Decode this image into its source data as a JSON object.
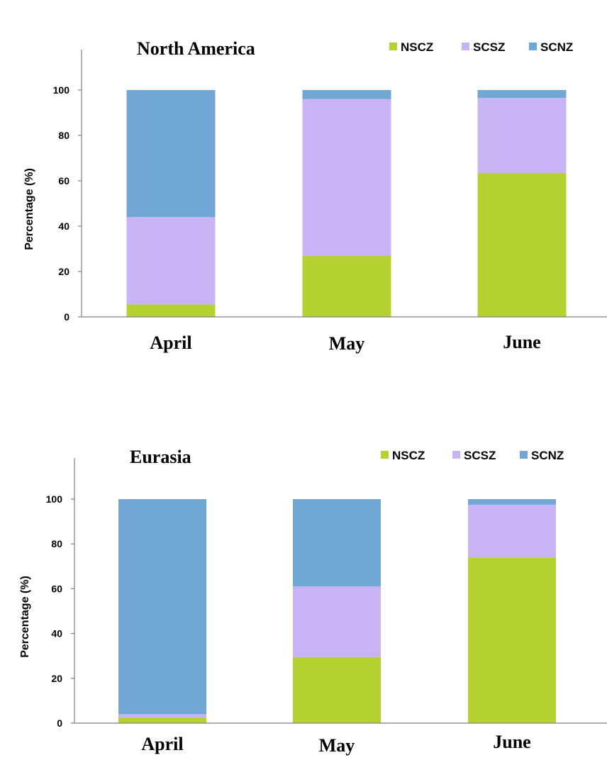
{
  "chart_data": [
    {
      "type": "bar",
      "stacked": true,
      "title": "North America",
      "xlabel": "",
      "ylabel": "Percentage (%)",
      "ylim": [
        0,
        120
      ],
      "yticks": [
        0,
        20,
        40,
        60,
        80,
        100
      ],
      "grid": false,
      "legend_position": "top-right",
      "categories": [
        "April",
        "May",
        "June"
      ],
      "series": [
        {
          "name": "NSCZ",
          "color": "#b5d132",
          "values": [
            5.5,
            27,
            63.5
          ]
        },
        {
          "name": "SCSZ",
          "color": "#c8b3f5",
          "values": [
            38.5,
            69,
            33
          ]
        },
        {
          "name": "SCNZ",
          "color": "#71a7d5",
          "values": [
            56,
            4,
            3.5
          ]
        }
      ]
    },
    {
      "type": "bar",
      "stacked": true,
      "title": "Eurasia",
      "xlabel": "",
      "ylabel": "Percentage (%)",
      "ylim": [
        0,
        120
      ],
      "yticks": [
        0,
        20,
        40,
        60,
        80,
        100
      ],
      "grid": false,
      "legend_position": "top-right",
      "categories": [
        "April",
        "May",
        "June"
      ],
      "series": [
        {
          "name": "NSCZ",
          "color": "#b5d132",
          "values": [
            2.5,
            29.5,
            74
          ]
        },
        {
          "name": "SCSZ",
          "color": "#c8b3f5",
          "values": [
            1.5,
            31.5,
            23.5
          ]
        },
        {
          "name": "SCNZ",
          "color": "#71a7d5",
          "values": [
            96,
            39,
            2.5
          ]
        }
      ]
    }
  ]
}
